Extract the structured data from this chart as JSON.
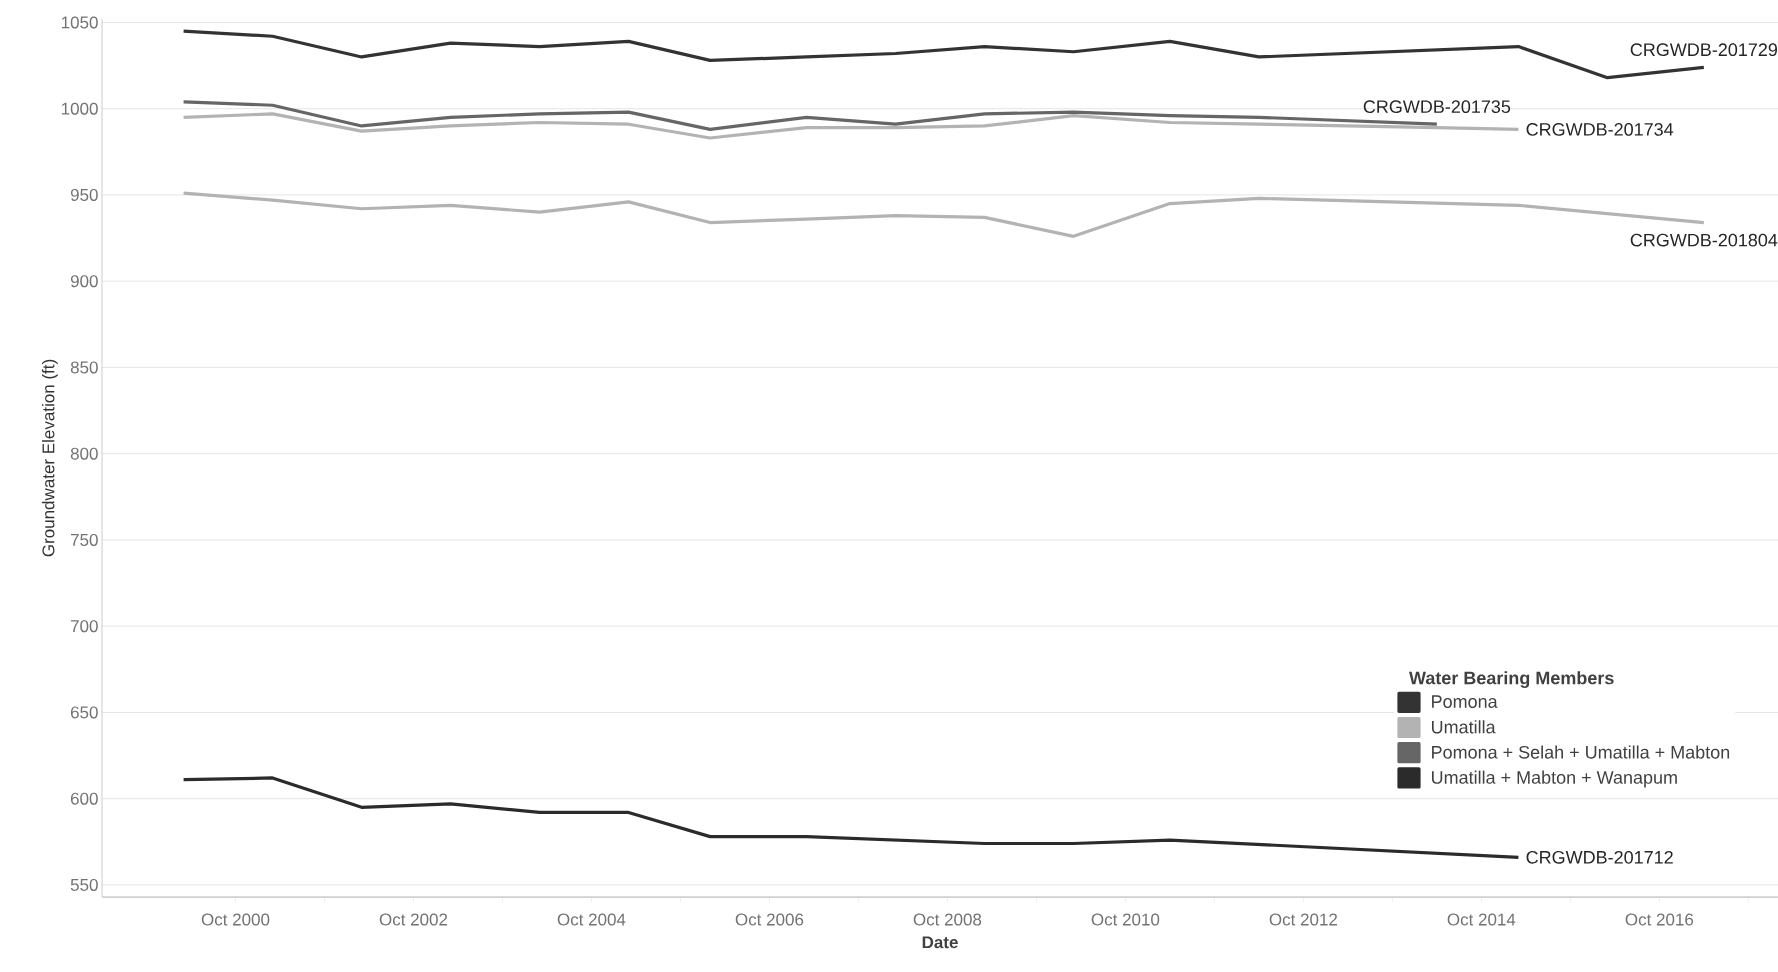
{
  "chart_data": {
    "type": "line",
    "xlabel": "Date",
    "ylabel": "Groundwater Elevation (ft)",
    "legend_title": "Water Bearing Members",
    "xlim": [
      "1999-04",
      "2018-02"
    ],
    "ylim": [
      543,
      1052
    ],
    "xticks": [
      {
        "value": "2000-10",
        "label": "Oct 2000"
      },
      {
        "value": "2001-10",
        "label": null
      },
      {
        "value": "2002-10",
        "label": "Oct 2002"
      },
      {
        "value": "2003-10",
        "label": null
      },
      {
        "value": "2004-10",
        "label": "Oct 2004"
      },
      {
        "value": "2005-10",
        "label": null
      },
      {
        "value": "2006-10",
        "label": "Oct 2006"
      },
      {
        "value": "2007-10",
        "label": null
      },
      {
        "value": "2008-10",
        "label": "Oct 2008"
      },
      {
        "value": "2009-10",
        "label": null
      },
      {
        "value": "2010-10",
        "label": "Oct 2010"
      },
      {
        "value": "2011-10",
        "label": null
      },
      {
        "value": "2012-10",
        "label": "Oct 2012"
      },
      {
        "value": "2013-10",
        "label": null
      },
      {
        "value": "2014-10",
        "label": "Oct 2014"
      },
      {
        "value": "2015-10",
        "label": null
      },
      {
        "value": "2016-10",
        "label": "Oct 2016"
      },
      {
        "value": "2017-10",
        "label": null
      }
    ],
    "yticks": [
      550,
      600,
      650,
      700,
      750,
      800,
      850,
      900,
      950,
      1000,
      1050
    ],
    "grid": "y",
    "legend": "bottom right",
    "series": [
      {
        "name": "Pomona",
        "color": "#333333",
        "x": [
          "2000-03",
          "2001-03",
          "2002-03",
          "2003-03",
          "2004-03",
          "2005-03",
          "2006-02",
          "2007-03",
          "2008-03",
          "2009-03",
          "2010-03",
          "2011-04",
          "2012-04",
          "2015-03",
          "2016-03",
          "2017-04"
        ],
        "values": [
          1045,
          1042,
          1030,
          1038,
          1036,
          1039,
          1028,
          1030,
          1032,
          1036,
          1033,
          1039,
          1030,
          1036,
          1018,
          1024
        ]
      },
      {
        "name": "Umatilla",
        "color": "#b3b3b3",
        "x": [
          "2000-03",
          "2001-03",
          "2002-03",
          "2003-03",
          "2004-03",
          "2005-03",
          "2006-02",
          "2007-03",
          "2008-03",
          "2009-03",
          "2010-03",
          "2011-04",
          "2012-04",
          "2014-04",
          "2015-03"
        ],
        "values": [
          995,
          997,
          987,
          990,
          992,
          991,
          983,
          989,
          989,
          990,
          996,
          992,
          991,
          989,
          988
        ]
      },
      {
        "color": "#b3b3b3",
        "x": [
          "2000-03",
          "2001-03",
          "2002-03",
          "2003-03",
          "2004-03",
          "2005-03",
          "2006-02",
          "2007-03",
          "2008-03",
          "2009-03",
          "2010-03",
          "2011-04",
          "2012-04",
          "2015-03",
          "2017-04"
        ],
        "values": [
          951,
          947,
          942,
          944,
          940,
          946,
          934,
          936,
          938,
          937,
          926,
          945,
          948,
          944,
          934
        ]
      },
      {
        "name": "Pomona + Selah + Umatilla + Mabton",
        "color": "#666666",
        "x": [
          "2000-03",
          "2001-03",
          "2002-03",
          "2003-03",
          "2004-03",
          "2005-03",
          "2006-02",
          "2007-03",
          "2008-03",
          "2009-03",
          "2010-03",
          "2011-04",
          "2012-04",
          "2014-04"
        ],
        "values": [
          1004,
          1002,
          990,
          995,
          997,
          998,
          988,
          995,
          991,
          997,
          998,
          996,
          995,
          991
        ]
      },
      {
        "name": "Umatilla + Mabton + Wanapum",
        "color": "#2b2b2b",
        "x": [
          "2000-03",
          "2001-03",
          "2002-03",
          "2003-03",
          "2004-03",
          "2005-03",
          "2006-02",
          "2007-03",
          "2009-03",
          "2010-03",
          "2011-04",
          "2015-03"
        ],
        "values": [
          611,
          612,
          595,
          597,
          592,
          592,
          578,
          578,
          574,
          574,
          576,
          566
        ]
      }
    ],
    "annotations": [
      {
        "text": "CRGWDB-201729",
        "x": "2017-04",
        "y": 1024
      },
      {
        "text": "CRGWDB-201735",
        "x": "2014-04",
        "y": 991
      },
      {
        "text": "CRGWDB-201734",
        "x": "2015-03",
        "y": 988
      },
      {
        "text": "CRGWDB-201804",
        "x": "2017-04",
        "y": 934
      },
      {
        "text": "CRGWDB-201712",
        "x": "2015-03",
        "y": 566
      }
    ]
  }
}
